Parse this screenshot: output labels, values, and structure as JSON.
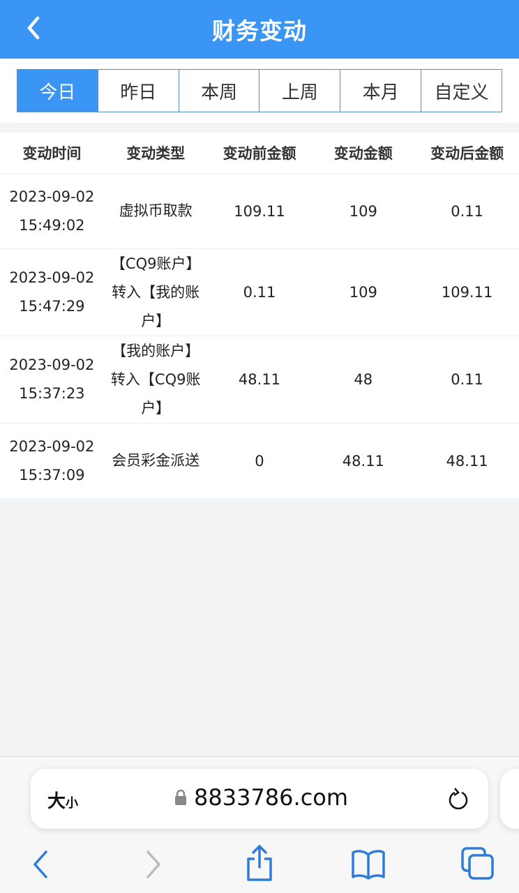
{
  "header": {
    "title": "财务变动",
    "back_icon": "chevron-left-icon"
  },
  "tabs": [
    {
      "label": "今日",
      "active": true
    },
    {
      "label": "昨日"
    },
    {
      "label": "本周"
    },
    {
      "label": "上周"
    },
    {
      "label": "本月"
    },
    {
      "label": "自定义"
    }
  ],
  "table": {
    "columns": [
      "变动时间",
      "变动类型",
      "变动前金额",
      "变动金额",
      "变动后金额"
    ],
    "rows": [
      {
        "date": "2023-09-02",
        "time": "15:49:02",
        "type": "虚拟币取款",
        "before": "109.11",
        "amount": "109",
        "after": "0.11"
      },
      {
        "date": "2023-09-02",
        "time": "15:47:29",
        "type": "【CQ9账户】转入【我的账户】",
        "before": "0.11",
        "amount": "109",
        "after": "109.11"
      },
      {
        "date": "2023-09-02",
        "time": "15:37:23",
        "type": "【我的账户】转入【CQ9账户】",
        "before": "48.11",
        "amount": "48",
        "after": "0.11"
      },
      {
        "date": "2023-09-02",
        "time": "15:37:09",
        "type": "会员彩金派送",
        "before": "0",
        "amount": "48.11",
        "after": "48.11"
      }
    ]
  },
  "browser": {
    "text_size_big": "大",
    "text_size_small": "小",
    "url": "8833786.com",
    "accent": "#2f7bd9"
  },
  "colors": {
    "primary": "#3a95f5"
  }
}
